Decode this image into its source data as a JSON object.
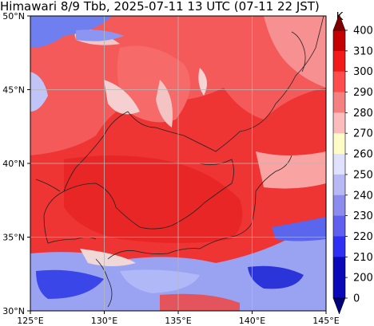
{
  "title": "Himawari 8/9 Tbb, 2025-07-11 13 UTC (07-11 22 JST)",
  "map": {
    "lat_labels": [
      "50°N",
      "45°N",
      "40°N",
      "35°N",
      "30°N"
    ],
    "lon_labels": [
      "125°E",
      "130°E",
      "135°E",
      "140°E",
      "145°E"
    ],
    "extent": {
      "lon_min": 125,
      "lon_max": 145,
      "lat_min": 30,
      "lat_max": 50
    }
  },
  "colorbar": {
    "unit": "K",
    "tick_labels": [
      "400",
      "310",
      "300",
      "290",
      "280",
      "270",
      "260",
      "250",
      "240",
      "230",
      "220",
      "210",
      "200",
      "0"
    ],
    "colors": [
      "#7f0000",
      "#c40000",
      "#f31a1a",
      "#ff4d4d",
      "#f58080",
      "#fdbcbc",
      "#fffcc8",
      "#e0e0ff",
      "#b8b8f5",
      "#8c8cef",
      "#6060f0",
      "#3030f5",
      "#0a0ab8",
      "#00007a"
    ],
    "top_arrow_color": "#7f0000",
    "bottom_arrow_color": "#00007a"
  }
}
